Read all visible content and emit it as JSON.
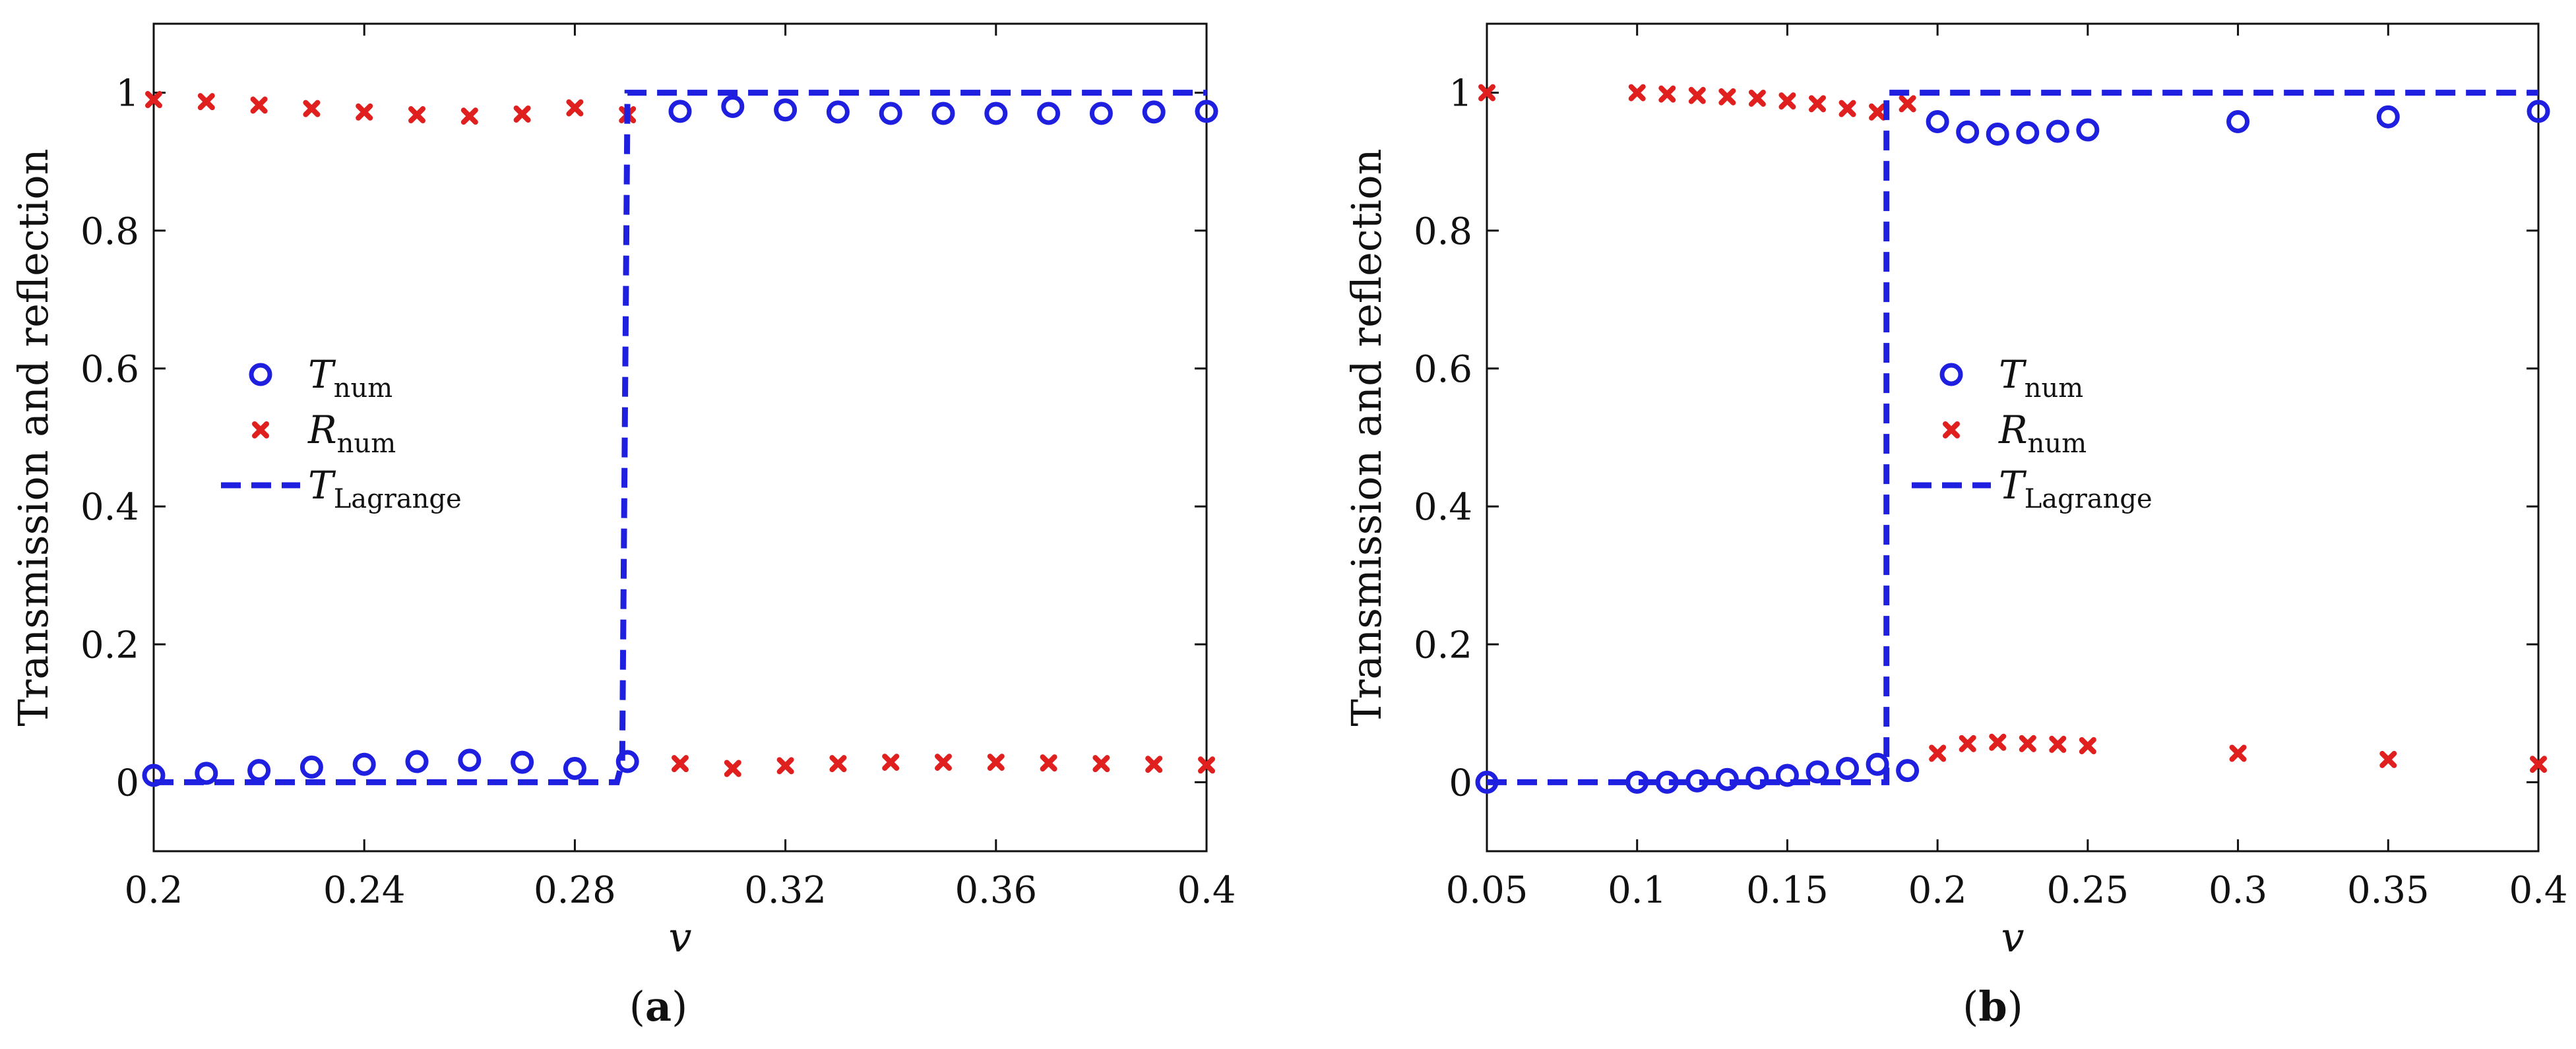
{
  "chart_data": [
    {
      "type": "scatter",
      "panel_label": "(a)",
      "xlabel": "v",
      "ylabel": "Transmission and reflection",
      "xlim": [
        0.2,
        0.4
      ],
      "ylim": [
        -0.1,
        1.1
      ],
      "xticks": [
        "0.2",
        "0.24",
        "0.28",
        "0.32",
        "0.36",
        "0.4"
      ],
      "xtick_values": [
        0.2,
        0.24,
        0.28,
        0.32,
        0.36,
        0.4
      ],
      "yticks": [
        "0",
        "0.2",
        "0.4",
        "0.6",
        "0.8",
        "1"
      ],
      "ytick_values": [
        0,
        0.2,
        0.4,
        0.6,
        0.8,
        1
      ],
      "grid": false,
      "legend_position": "center-left",
      "series": [
        {
          "name": "T",
          "name_sub": "num",
          "marker": "circle",
          "color": "#1f1fe0",
          "x": [
            0.2,
            0.21,
            0.22,
            0.23,
            0.24,
            0.25,
            0.26,
            0.27,
            0.28,
            0.29,
            0.3,
            0.31,
            0.32,
            0.33,
            0.34,
            0.35,
            0.36,
            0.37,
            0.38,
            0.39,
            0.4
          ],
          "y": [
            0.01,
            0.013,
            0.017,
            0.022,
            0.026,
            0.03,
            0.032,
            0.029,
            0.02,
            0.03,
            0.973,
            0.98,
            0.975,
            0.972,
            0.97,
            0.97,
            0.97,
            0.97,
            0.97,
            0.972,
            0.973
          ]
        },
        {
          "name": "R",
          "name_sub": "num",
          "marker": "x",
          "color": "#e01f1f",
          "x": [
            0.2,
            0.21,
            0.22,
            0.23,
            0.24,
            0.25,
            0.26,
            0.27,
            0.28,
            0.29,
            0.3,
            0.31,
            0.32,
            0.33,
            0.34,
            0.35,
            0.36,
            0.37,
            0.38,
            0.39,
            0.4
          ],
          "y": [
            0.99,
            0.987,
            0.982,
            0.977,
            0.972,
            0.968,
            0.966,
            0.969,
            0.978,
            0.968,
            0.027,
            0.02,
            0.024,
            0.027,
            0.029,
            0.029,
            0.029,
            0.028,
            0.027,
            0.026,
            0.025
          ]
        },
        {
          "name": "T",
          "name_sub": "Lagrange",
          "line": "dashed",
          "color": "#1f1fe0",
          "x": [
            0.2,
            0.288,
            0.289,
            0.29,
            0.4
          ],
          "y": [
            0,
            0,
            0.03,
            1,
            1
          ]
        }
      ]
    },
    {
      "type": "scatter",
      "panel_label": "(b)",
      "xlabel": "v",
      "ylabel": "Transmission and reflection",
      "xlim": [
        0.05,
        0.4
      ],
      "ylim": [
        -0.1,
        1.1
      ],
      "xticks": [
        "0.05",
        "0.1",
        "0.15",
        "0.2",
        "0.25",
        "0.3",
        "0.35",
        "0.4"
      ],
      "xtick_values": [
        0.05,
        0.1,
        0.15,
        0.2,
        0.25,
        0.3,
        0.35,
        0.4
      ],
      "yticks": [
        "0",
        "0.2",
        "0.4",
        "0.6",
        "0.8",
        "1"
      ],
      "ytick_values": [
        0,
        0.2,
        0.4,
        0.6,
        0.8,
        1
      ],
      "grid": false,
      "legend_position": "center",
      "series": [
        {
          "name": "T",
          "name_sub": "num",
          "marker": "circle",
          "color": "#1f1fe0",
          "x": [
            0.05,
            0.1,
            0.11,
            0.12,
            0.13,
            0.14,
            0.15,
            0.16,
            0.17,
            0.18,
            0.19,
            0.2,
            0.21,
            0.22,
            0.23,
            0.24,
            0.25,
            0.3,
            0.35,
            0.4
          ],
          "y": [
            0.0,
            0.0,
            0.0,
            0.002,
            0.004,
            0.006,
            0.01,
            0.015,
            0.02,
            0.026,
            0.017,
            0.958,
            0.943,
            0.94,
            0.942,
            0.944,
            0.946,
            0.958,
            0.965,
            0.973
          ]
        },
        {
          "name": "R",
          "name_sub": "num",
          "marker": "x",
          "color": "#e01f1f",
          "x": [
            0.05,
            0.1,
            0.11,
            0.12,
            0.13,
            0.14,
            0.15,
            0.16,
            0.17,
            0.18,
            0.19,
            0.2,
            0.21,
            0.22,
            0.23,
            0.24,
            0.25,
            0.3,
            0.35,
            0.4
          ],
          "y": [
            1.0,
            1.0,
            0.998,
            0.996,
            0.994,
            0.992,
            0.988,
            0.984,
            0.977,
            0.972,
            0.984,
            0.042,
            0.056,
            0.058,
            0.056,
            0.055,
            0.053,
            0.042,
            0.033,
            0.026
          ]
        },
        {
          "name": "T",
          "name_sub": "Lagrange",
          "line": "dashed",
          "color": "#1f1fe0",
          "x": [
            0.05,
            0.183,
            0.183,
            0.4
          ],
          "y": [
            0,
            0,
            1,
            1
          ]
        }
      ]
    }
  ]
}
